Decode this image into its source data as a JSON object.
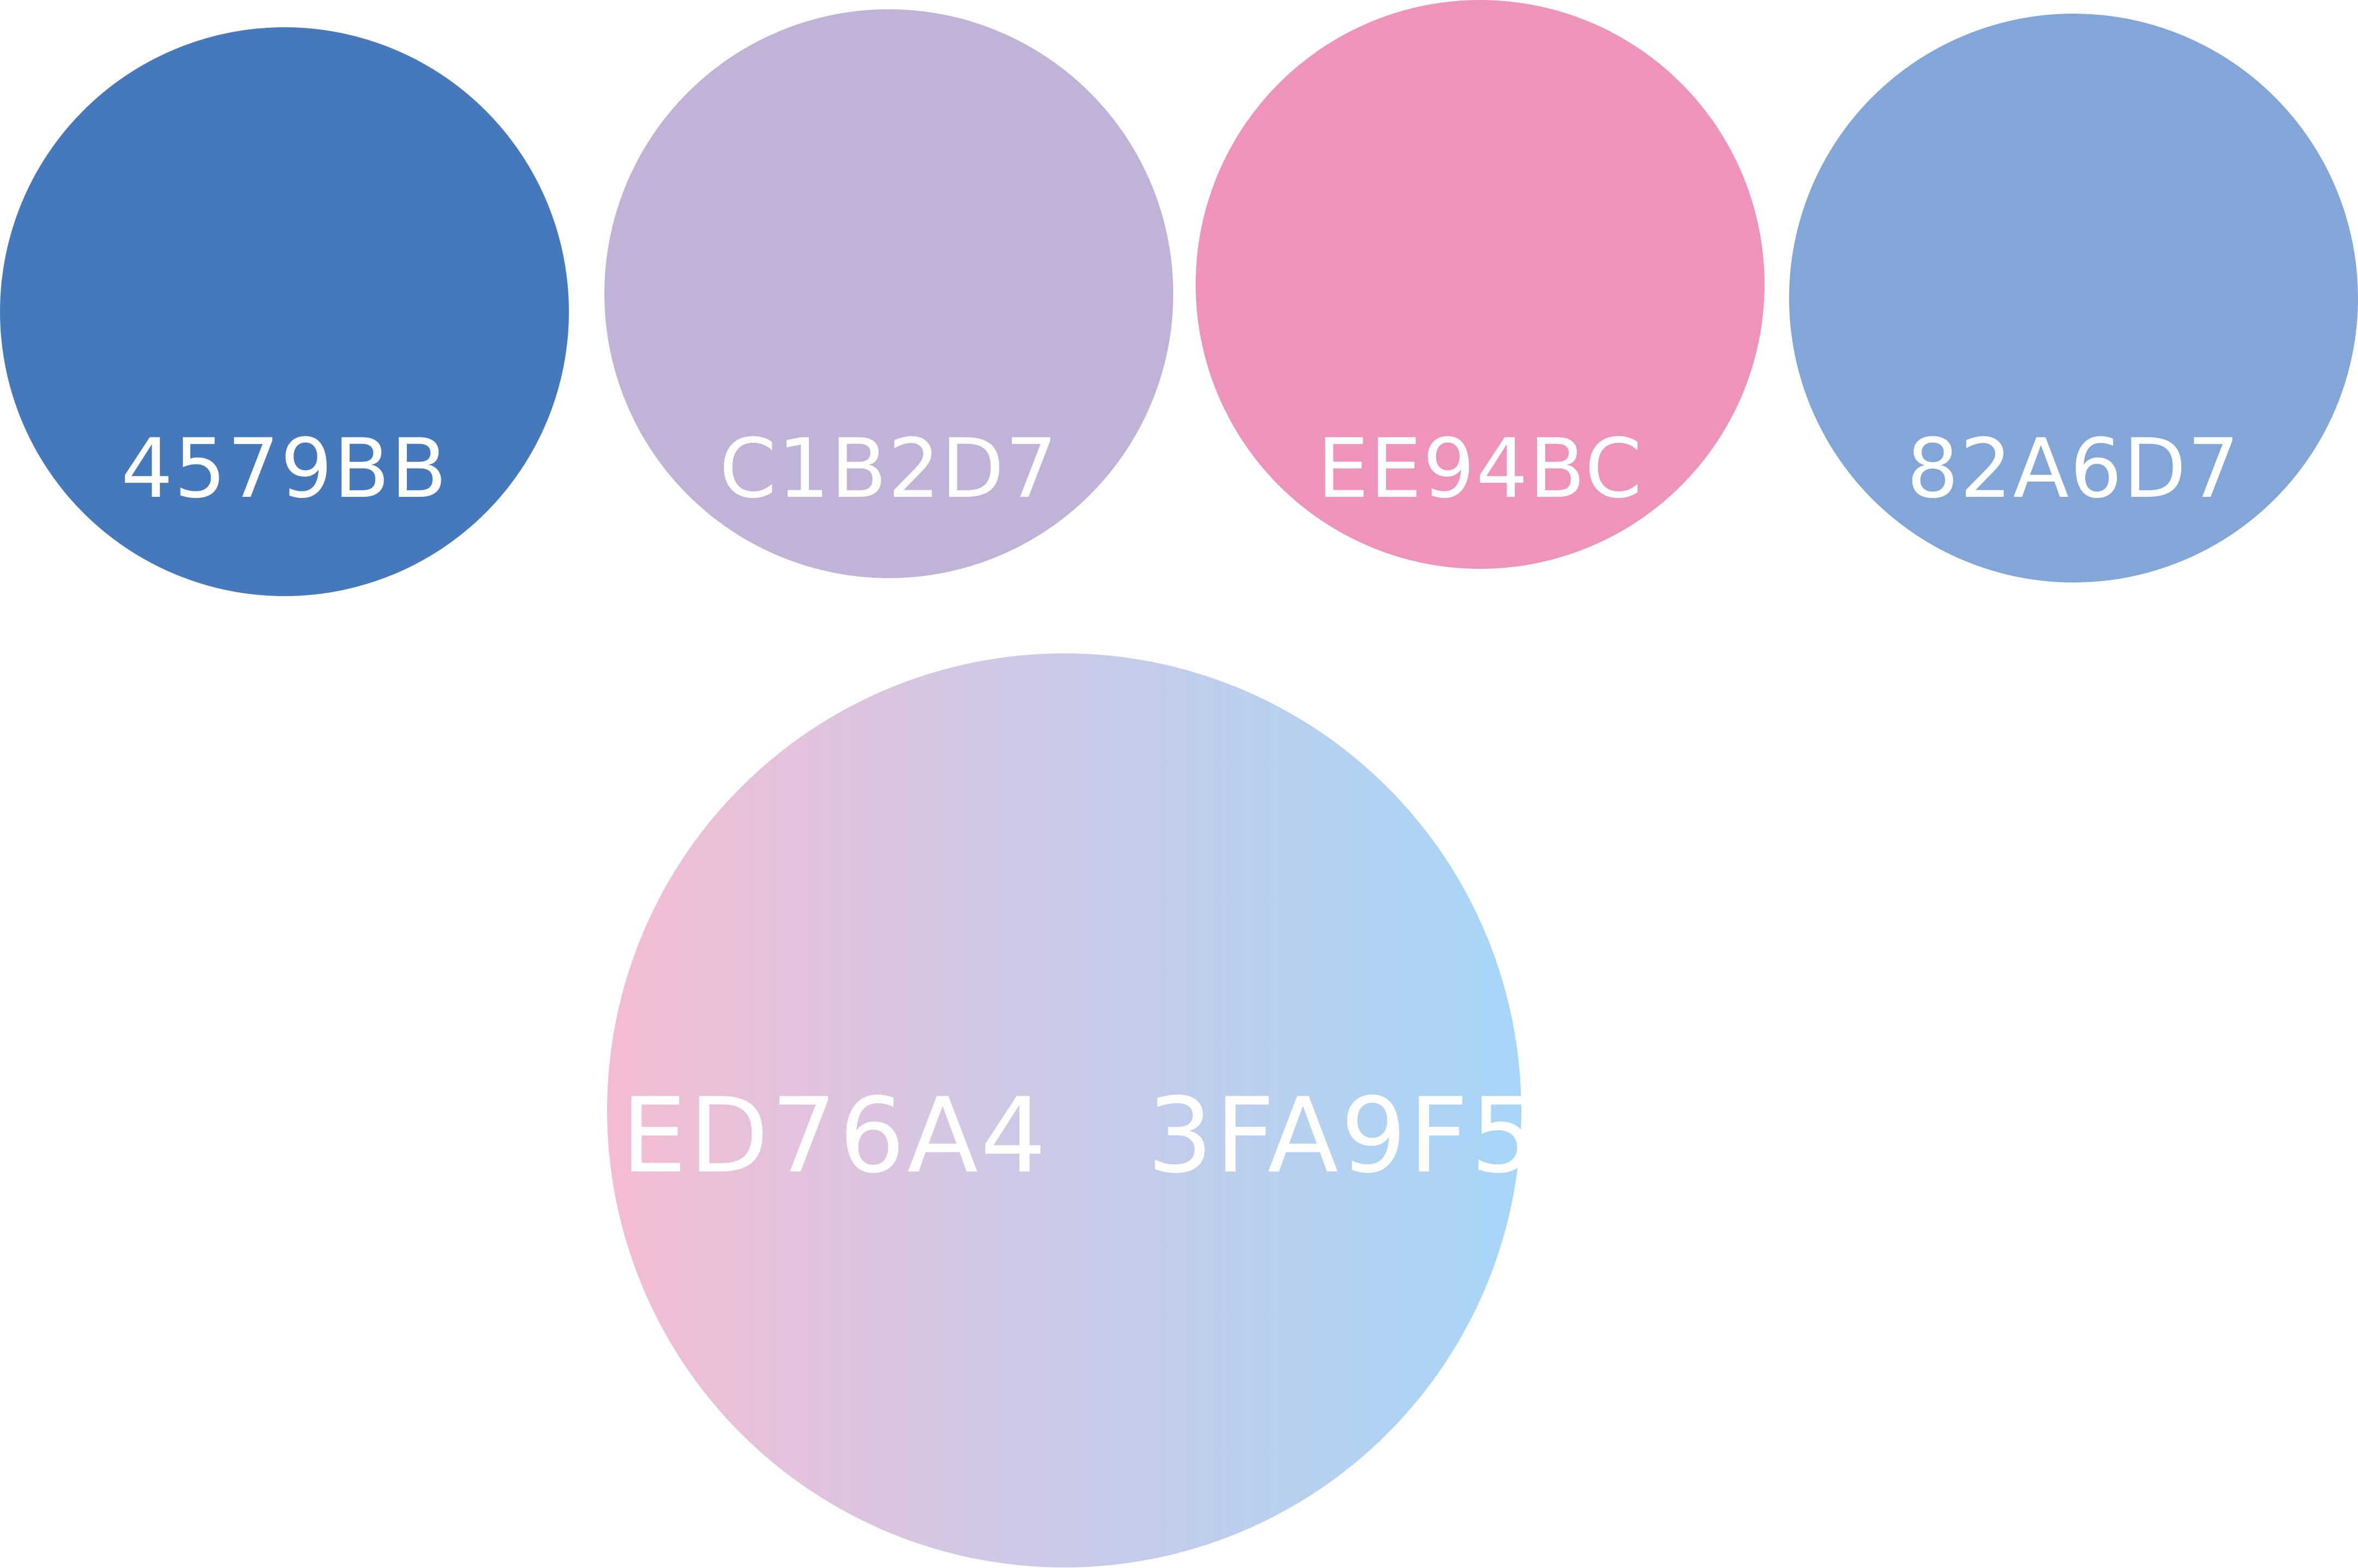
{
  "swatches": [
    {
      "color": "#4579BB",
      "label": "4579BB"
    },
    {
      "color": "#C1B2D7",
      "label": "C1B2D7"
    },
    {
      "color": "#EE94BC",
      "label": "EE94BC"
    },
    {
      "color": "#82A6D7",
      "label": "82A6D7"
    }
  ],
  "gradient": {
    "start_color": "#F4BCD3",
    "mid_color": "#C9CAE8",
    "end_color": "#A6D6F8",
    "start_label": "ED76A4",
    "end_label": "3FA9F5"
  }
}
